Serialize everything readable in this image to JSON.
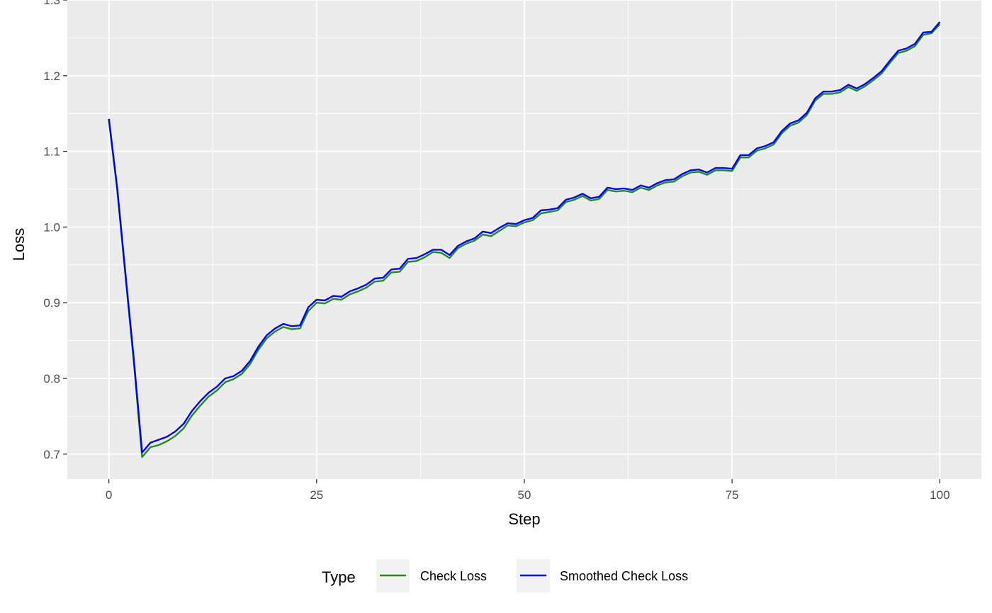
{
  "chart_data": {
    "type": "line",
    "title": "",
    "xlabel": "Step",
    "ylabel": "Loss",
    "xlim": [
      -5,
      105
    ],
    "ylim": [
      0.667,
      1.3
    ],
    "x_ticks": [
      0,
      25,
      50,
      75,
      100
    ],
    "y_ticks": [
      0.7,
      0.8,
      0.9,
      1.0,
      1.1,
      1.2,
      1.3
    ],
    "x_tick_labels": [
      "0",
      "25",
      "50",
      "75",
      "100"
    ],
    "y_tick_labels": [
      "0.7",
      "0.8",
      "0.9",
      "1.0",
      "1.1",
      "1.2",
      "1.3"
    ],
    "grid": true,
    "background": "#ebebeb",
    "legend": {
      "title": "Type",
      "position": "bottom",
      "entries": [
        "Check Loss",
        "Smoothed Check Loss"
      ]
    },
    "series": [
      {
        "name": "Check Loss",
        "color": "#228b22",
        "x": [
          0,
          1,
          2,
          3,
          4,
          5,
          6,
          7,
          8,
          9,
          10,
          11,
          12,
          13,
          14,
          15,
          16,
          17,
          18,
          19,
          20,
          21,
          22,
          23,
          24,
          25,
          26,
          27,
          28,
          29,
          30,
          31,
          32,
          33,
          34,
          35,
          36,
          37,
          38,
          39,
          40,
          41,
          42,
          43,
          44,
          45,
          46,
          47,
          48,
          49,
          50,
          51,
          52,
          53,
          54,
          55,
          56,
          57,
          58,
          59,
          60,
          61,
          62,
          63,
          64,
          65,
          66,
          67,
          68,
          69,
          70,
          71,
          72,
          73,
          74,
          75,
          76,
          77,
          78,
          79,
          80,
          81,
          82,
          83,
          84,
          85,
          86,
          87,
          88,
          89,
          90,
          91,
          92,
          93,
          94,
          95,
          96,
          97,
          98,
          99,
          100
        ],
        "y": [
          1.142,
          1.05,
          0.935,
          0.822,
          0.696,
          0.709,
          0.712,
          0.717,
          0.724,
          0.734,
          0.751,
          0.764,
          0.776,
          0.784,
          0.795,
          0.799,
          0.806,
          0.819,
          0.838,
          0.853,
          0.862,
          0.868,
          0.865,
          0.866,
          0.889,
          0.9,
          0.899,
          0.905,
          0.904,
          0.911,
          0.915,
          0.92,
          0.928,
          0.929,
          0.94,
          0.941,
          0.954,
          0.955,
          0.96,
          0.967,
          0.966,
          0.959,
          0.972,
          0.978,
          0.982,
          0.99,
          0.988,
          0.995,
          1.002,
          1.001,
          1.006,
          1.009,
          1.018,
          1.02,
          1.022,
          1.033,
          1.036,
          1.041,
          1.035,
          1.037,
          1.049,
          1.047,
          1.048,
          1.046,
          1.052,
          1.049,
          1.055,
          1.059,
          1.06,
          1.067,
          1.072,
          1.073,
          1.069,
          1.075,
          1.075,
          1.074,
          1.092,
          1.092,
          1.101,
          1.104,
          1.109,
          1.124,
          1.134,
          1.138,
          1.148,
          1.167,
          1.176,
          1.176,
          1.178,
          1.185,
          1.18,
          1.186,
          1.194,
          1.203,
          1.217,
          1.23,
          1.233,
          1.239,
          1.254,
          1.256,
          1.268
        ]
      },
      {
        "name": "Smoothed Check Loss",
        "color": "#0000ee",
        "x": [
          0,
          1,
          2,
          3,
          4,
          5,
          6,
          7,
          8,
          9,
          10,
          11,
          12,
          13,
          14,
          15,
          16,
          17,
          18,
          19,
          20,
          21,
          22,
          23,
          24,
          25,
          26,
          27,
          28,
          29,
          30,
          31,
          32,
          33,
          34,
          35,
          36,
          37,
          38,
          39,
          40,
          41,
          42,
          43,
          44,
          45,
          46,
          47,
          48,
          49,
          50,
          51,
          52,
          53,
          54,
          55,
          56,
          57,
          58,
          59,
          60,
          61,
          62,
          63,
          64,
          65,
          66,
          67,
          68,
          69,
          70,
          71,
          72,
          73,
          74,
          75,
          76,
          77,
          78,
          79,
          80,
          81,
          82,
          83,
          84,
          85,
          86,
          87,
          88,
          89,
          90,
          91,
          92,
          93,
          94,
          95,
          96,
          97,
          98,
          99,
          100
        ],
        "y": [
          1.143,
          1.052,
          0.938,
          0.826,
          0.702,
          0.715,
          0.719,
          0.723,
          0.73,
          0.74,
          0.757,
          0.77,
          0.781,
          0.789,
          0.8,
          0.803,
          0.81,
          0.823,
          0.842,
          0.857,
          0.866,
          0.872,
          0.869,
          0.87,
          0.894,
          0.904,
          0.903,
          0.909,
          0.908,
          0.915,
          0.919,
          0.924,
          0.932,
          0.933,
          0.944,
          0.945,
          0.958,
          0.959,
          0.964,
          0.97,
          0.97,
          0.963,
          0.975,
          0.981,
          0.985,
          0.994,
          0.992,
          0.999,
          1.005,
          1.004,
          1.009,
          1.012,
          1.022,
          1.023,
          1.025,
          1.036,
          1.039,
          1.044,
          1.038,
          1.04,
          1.052,
          1.05,
          1.051,
          1.049,
          1.055,
          1.052,
          1.058,
          1.062,
          1.063,
          1.07,
          1.075,
          1.076,
          1.072,
          1.078,
          1.078,
          1.077,
          1.095,
          1.095,
          1.104,
          1.107,
          1.112,
          1.127,
          1.137,
          1.141,
          1.151,
          1.17,
          1.179,
          1.179,
          1.181,
          1.188,
          1.183,
          1.189,
          1.197,
          1.206,
          1.22,
          1.233,
          1.236,
          1.242,
          1.257,
          1.258,
          1.271
        ]
      }
    ]
  }
}
